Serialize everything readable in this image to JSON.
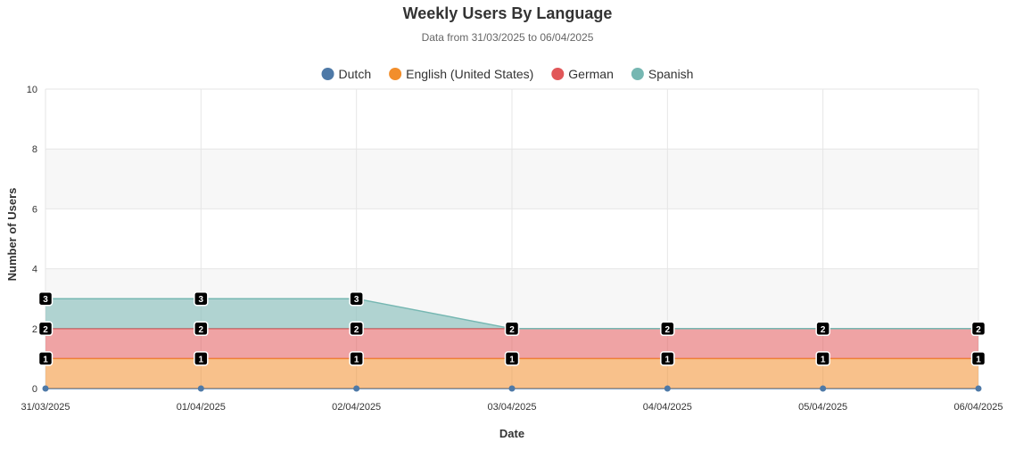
{
  "chart_data": {
    "type": "area",
    "stacked": true,
    "title": "Weekly Users By Language",
    "subtitle": "Data from 31/03/2025 to 06/04/2025",
    "xlabel": "Date",
    "ylabel": "Number of Users",
    "ylim": [
      0,
      10
    ],
    "y_ticks": [
      0,
      2,
      4,
      6,
      8,
      10
    ],
    "legend_position": "top-center",
    "grid": true,
    "categories": [
      "31/03/2025",
      "01/04/2025",
      "02/04/2025",
      "03/04/2025",
      "04/04/2025",
      "05/04/2025",
      "06/04/2025"
    ],
    "series": [
      {
        "name": "Dutch",
        "color": "#4e79a7",
        "values": [
          0,
          0,
          0,
          0,
          0,
          0,
          0
        ]
      },
      {
        "name": "English (United States)",
        "color": "#f28e2b",
        "values": [
          1,
          1,
          1,
          1,
          1,
          1,
          1
        ]
      },
      {
        "name": "German",
        "color": "#e15759",
        "values": [
          1,
          1,
          1,
          1,
          1,
          1,
          1
        ]
      },
      {
        "name": "Spanish",
        "color": "#76b7b2",
        "values": [
          1,
          1,
          1,
          0,
          0,
          0,
          0
        ]
      }
    ],
    "data_labels": true
  }
}
